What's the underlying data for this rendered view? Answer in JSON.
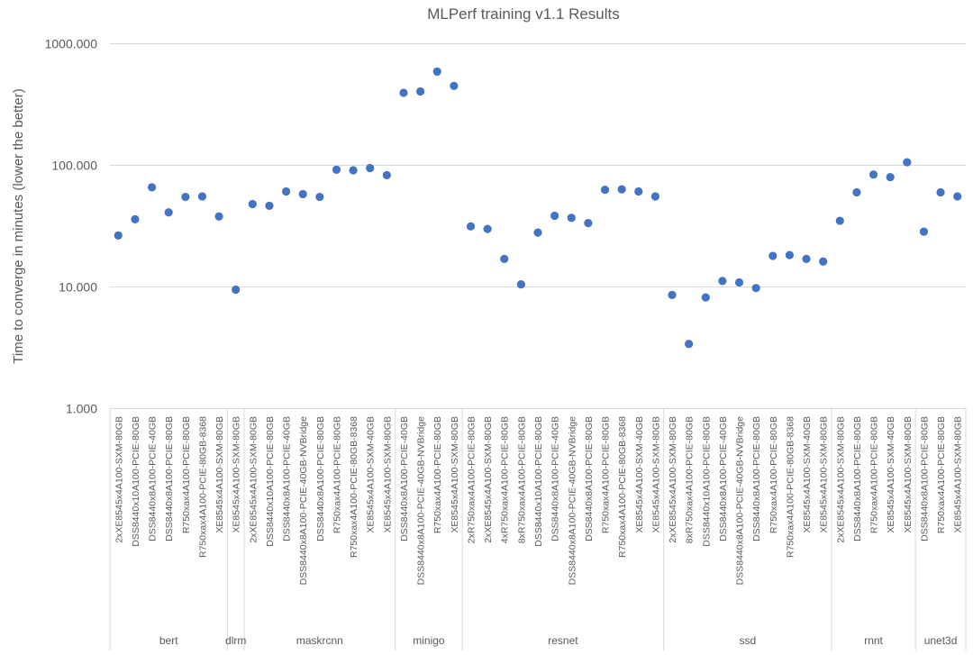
{
  "chart_data": {
    "type": "scatter",
    "title": "MLPerf training v1.1 Results",
    "ylabel": "Time to converge in minutes (lower the better)",
    "xlabel": "",
    "yscale": "log",
    "ylim": [
      1,
      1000
    ],
    "yticks": [
      "1.000",
      "10.000",
      "100.000",
      "1000.000"
    ],
    "grid": true,
    "legend": "none",
    "point_color": "#4472c4",
    "groups": [
      {
        "name": "bert",
        "items": [
          {
            "label": "2xXE8545x4A100-SXM-80GB",
            "value": 26.5
          },
          {
            "label": "DSS8440x10A100-PCIE-80GB",
            "value": 36
          },
          {
            "label": "DSS8440x8A100-PCIE-40GB",
            "value": 66
          },
          {
            "label": "DSS8440x8A100-PCIE-80GB",
            "value": 41
          },
          {
            "label": "R750xax4A100-PCIE-80GB",
            "value": 55
          },
          {
            "label": "R750xax4A100-PCIE-80GB-8368",
            "value": 55.5
          },
          {
            "label": "XE8545x4A100-SXM-80GB",
            "value": 38
          }
        ]
      },
      {
        "name": "dlrm",
        "items": [
          {
            "label": "XE8545x4A100-SXM-80GB",
            "value": 9.5
          }
        ]
      },
      {
        "name": "maskrcnn",
        "items": [
          {
            "label": "2xXE8545x4A100-SXM-80GB",
            "value": 48
          },
          {
            "label": "DSS8440x10A100-PCIE-80GB",
            "value": 46.5
          },
          {
            "label": "DSS8440x8A100-PCIE-40GB",
            "value": 61
          },
          {
            "label": "DSS8440x8A100-PCIE-40GB-NVBridge",
            "value": 58
          },
          {
            "label": "DSS8440x8A100-PCIE-80GB",
            "value": 55
          },
          {
            "label": "R750xax4A100-PCIE-80GB",
            "value": 92
          },
          {
            "label": "R750xax4A100-PCIE-80GB-8368",
            "value": 91
          },
          {
            "label": "XE8545x4A100-SXM-40GB",
            "value": 95
          },
          {
            "label": "XE8545x4A100-SXM-80GB",
            "value": 83
          }
        ]
      },
      {
        "name": "minigo",
        "items": [
          {
            "label": "DSS8440x8A100-PCIE-40GB",
            "value": 395
          },
          {
            "label": "DSS8440x8A100-PCIE-40GB-NVBridge",
            "value": 405
          },
          {
            "label": "R750xax4A100-PCIE-80GB",
            "value": 590
          },
          {
            "label": "XE8545x4A100-SXM-80GB",
            "value": 450
          }
        ]
      },
      {
        "name": "resnet",
        "items": [
          {
            "label": "2xR750xax4A100-PCIE-80GB",
            "value": 31.5
          },
          {
            "label": "2xXE8545x4A100-SXM-80GB",
            "value": 30
          },
          {
            "label": "4xR750xax4A100-PCIE-80GB",
            "value": 17
          },
          {
            "label": "8xR750xax4A100-PCIE-80GB",
            "value": 10.5
          },
          {
            "label": "DSS8440x10A100-PCIE-80GB",
            "value": 28
          },
          {
            "label": "DSS8440x8A100-PCIE-40GB",
            "value": 38.5
          },
          {
            "label": "DSS8440x8A100-PCIE-40GB-NVBridge",
            "value": 37
          },
          {
            "label": "DSS8440x8A100-PCIE-80GB",
            "value": 33.5
          },
          {
            "label": "R750xax4A100-PCIE-80GB",
            "value": 63
          },
          {
            "label": "R750xax4A100-PCIE-80GB-8368",
            "value": 63.5
          },
          {
            "label": "XE8545x4A100-SXM-40GB",
            "value": 61
          },
          {
            "label": "XE8545x4A100-SXM-80GB",
            "value": 55.5
          }
        ]
      },
      {
        "name": "ssd",
        "items": [
          {
            "label": "2xXE8545x4A100-SXM-80GB",
            "value": 8.6
          },
          {
            "label": "8xR750xax4A100-PCIE-80GB",
            "value": 3.4
          },
          {
            "label": "DSS8440x10A100-PCIE-80GB",
            "value": 8.2
          },
          {
            "label": "DSS8440x8A100-PCIE-40GB",
            "value": 11.2
          },
          {
            "label": "DSS8440x8A100-PCIE-40GB-NVBridge",
            "value": 10.9
          },
          {
            "label": "DSS8440x8A100-PCIE-80GB",
            "value": 9.8
          },
          {
            "label": "R750xax4A100-PCIE-80GB",
            "value": 18
          },
          {
            "label": "R750xax4A100-PCIE-80GB-8368",
            "value": 18.3
          },
          {
            "label": "XE8545x4A100-SXM-40GB",
            "value": 17
          },
          {
            "label": "XE8545x4A100-SXM-80GB",
            "value": 16.2
          }
        ]
      },
      {
        "name": "rnnt",
        "items": [
          {
            "label": "2xXE8545x4A100-SXM-80GB",
            "value": 35
          },
          {
            "label": "DSS8440x8A100-PCIE-80GB",
            "value": 60
          },
          {
            "label": "R750xax4A100-PCIE-80GB",
            "value": 84
          },
          {
            "label": "XE8545x4A100-SXM-40GB",
            "value": 80
          },
          {
            "label": "XE8545x4A100-SXM-80GB",
            "value": 106
          }
        ]
      },
      {
        "name": "unet3d",
        "items": [
          {
            "label": "DSS8440x8A100-PCIE-80GB",
            "value": 28.5
          },
          {
            "label": "R750xax4A100-PCIE-80GB",
            "value": 60
          },
          {
            "label": "XE8545x4A100-SXM-80GB",
            "value": 55.5
          }
        ]
      }
    ]
  }
}
